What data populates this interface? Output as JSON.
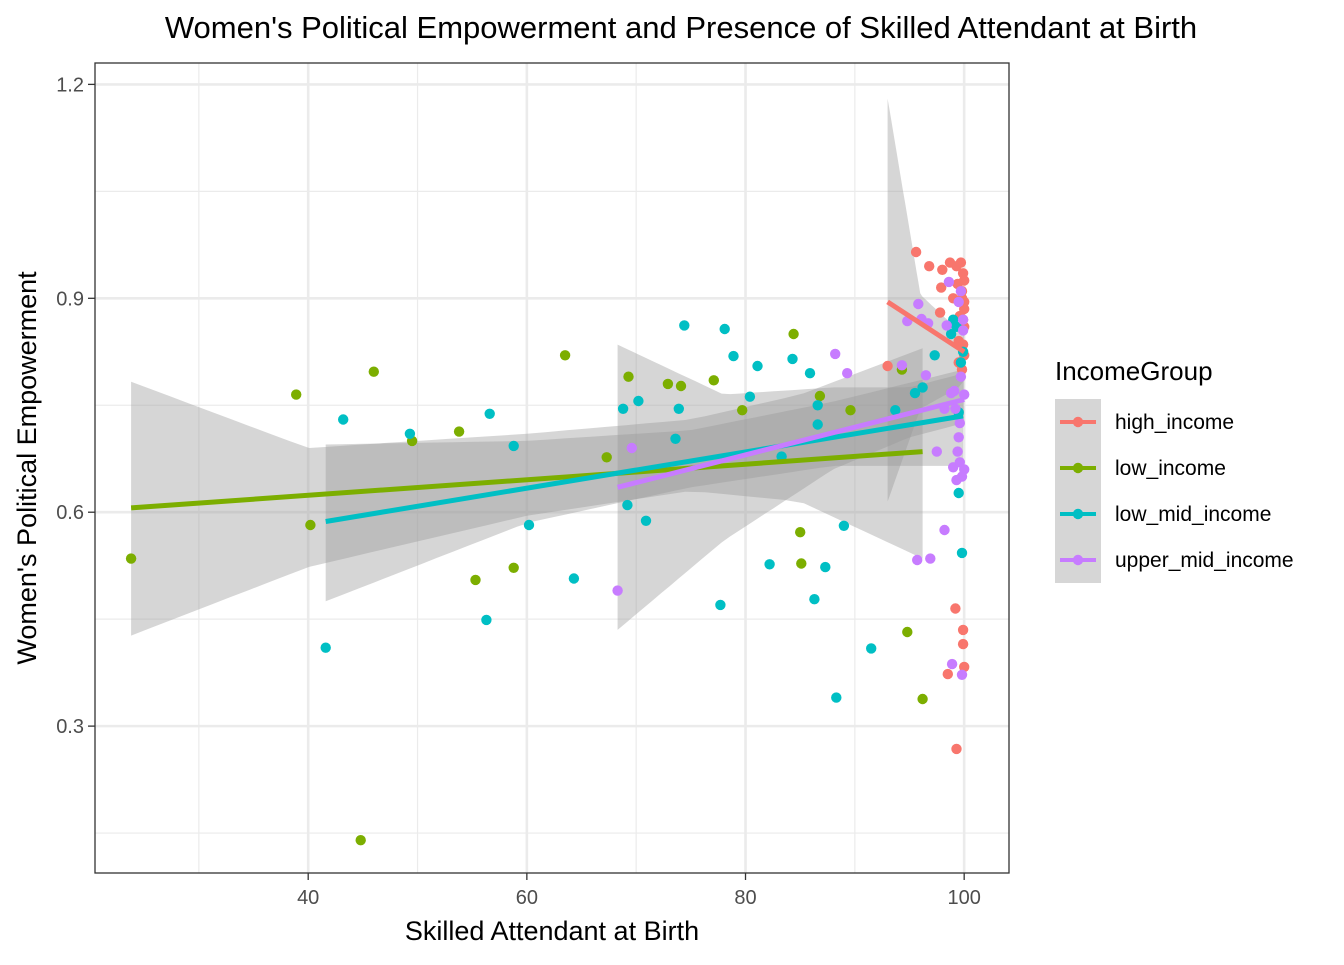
{
  "chart_data": {
    "type": "scatter",
    "title": "Women's Political Empowerment and Presence of Skilled Attendant at Birth",
    "xlabel": "Skilled Attendant at Birth",
    "ylabel": "Women's Political Empowerment",
    "xlim": [
      20.5,
      104.1
    ],
    "ylim": [
      0.094,
      1.23
    ],
    "x_ticks": [
      40,
      60,
      80,
      100
    ],
    "y_ticks": [
      0.3,
      0.6,
      0.9,
      1.2
    ],
    "x_minor": [
      30,
      50,
      70,
      90
    ],
    "y_minor": [
      0.15,
      0.45,
      0.75,
      1.05
    ],
    "grid": true,
    "legend": {
      "title": "IncomeGroup",
      "position": "right"
    },
    "colors": {
      "high_income": "#F8766D",
      "low_income": "#7CAE00",
      "low_mid_income": "#00BFC4",
      "upper_mid_income": "#C77CFF",
      "ribbon": "#999999"
    },
    "series": [
      {
        "name": "high_income",
        "color": "#F8766D",
        "points": [
          [
            93,
            0.805
          ],
          [
            95.6,
            0.965
          ],
          [
            96.8,
            0.945
          ],
          [
            98,
            0.94
          ],
          [
            98.7,
            0.95
          ],
          [
            99.3,
            0.945
          ],
          [
            99.7,
            0.95
          ],
          [
            99.9,
            0.935
          ],
          [
            100,
            0.925
          ],
          [
            99.4,
            0.92
          ],
          [
            99.8,
            0.91
          ],
          [
            97.9,
            0.915
          ],
          [
            99,
            0.9
          ],
          [
            99.8,
            0.9
          ],
          [
            100,
            0.895
          ],
          [
            100,
            0.885
          ],
          [
            97.8,
            0.88
          ],
          [
            99.6,
            0.875
          ],
          [
            99.9,
            0.87
          ],
          [
            100,
            0.86
          ],
          [
            99.5,
            0.84
          ],
          [
            99.9,
            0.835
          ],
          [
            100,
            0.82
          ],
          [
            99.5,
            0.81
          ],
          [
            99.8,
            0.8
          ],
          [
            99.2,
            0.465
          ],
          [
            99.9,
            0.435
          ],
          [
            99.9,
            0.415
          ],
          [
            100,
            0.383
          ],
          [
            98.5,
            0.373
          ],
          [
            99.3,
            0.268
          ]
        ],
        "fit": {
          "x": [
            93,
            100
          ],
          "y": [
            0.895,
            0.825
          ]
        },
        "ribbon": {
          "x": [
            93,
            96,
            99.5,
            100
          ],
          "lower": [
            0.615,
            0.745,
            0.775,
            0.785
          ],
          "upper": [
            1.18,
            0.905,
            0.855,
            0.865
          ]
        }
      },
      {
        "name": "low_income",
        "color": "#7CAE00",
        "points": [
          [
            23.8,
            0.535
          ],
          [
            38.9,
            0.765
          ],
          [
            40.2,
            0.582
          ],
          [
            44.8,
            0.14
          ],
          [
            46,
            0.797
          ],
          [
            49.5,
            0.7
          ],
          [
            53.8,
            0.713
          ],
          [
            55.3,
            0.505
          ],
          [
            58.8,
            0.522
          ],
          [
            63.5,
            0.82
          ],
          [
            67.3,
            0.677
          ],
          [
            69.3,
            0.79
          ],
          [
            72.9,
            0.78
          ],
          [
            74.1,
            0.777
          ],
          [
            77.1,
            0.785
          ],
          [
            79.7,
            0.743
          ],
          [
            84.4,
            0.85
          ],
          [
            85,
            0.572
          ],
          [
            85.1,
            0.528
          ],
          [
            86.8,
            0.763
          ],
          [
            89.6,
            0.743
          ],
          [
            94.3,
            0.8
          ],
          [
            94.8,
            0.432
          ],
          [
            96.2,
            0.338
          ]
        ],
        "fit": {
          "x": [
            23.8,
            96.2
          ],
          "y": [
            0.606,
            0.685
          ]
        },
        "ribbon": {
          "x": [
            23.8,
            40,
            60,
            75,
            85,
            96.2
          ],
          "lower": [
            0.427,
            0.523,
            0.595,
            0.63,
            0.615,
            0.535
          ],
          "upper": [
            0.783,
            0.69,
            0.71,
            0.73,
            0.765,
            0.83
          ]
        }
      },
      {
        "name": "low_mid_income",
        "color": "#00BFC4",
        "points": [
          [
            41.6,
            0.41
          ],
          [
            43.2,
            0.73
          ],
          [
            49.3,
            0.71
          ],
          [
            56.3,
            0.449
          ],
          [
            56.6,
            0.738
          ],
          [
            58.8,
            0.693
          ],
          [
            60.2,
            0.582
          ],
          [
            64.3,
            0.507
          ],
          [
            68.8,
            0.745
          ],
          [
            69.2,
            0.61
          ],
          [
            70.2,
            0.756
          ],
          [
            70.9,
            0.588
          ],
          [
            73.6,
            0.703
          ],
          [
            73.9,
            0.745
          ],
          [
            74.4,
            0.862
          ],
          [
            77.7,
            0.47
          ],
          [
            78.1,
            0.857
          ],
          [
            78.9,
            0.819
          ],
          [
            80.4,
            0.762
          ],
          [
            81.1,
            0.805
          ],
          [
            82.2,
            0.527
          ],
          [
            83.3,
            0.678
          ],
          [
            84.3,
            0.815
          ],
          [
            85.9,
            0.795
          ],
          [
            86.3,
            0.478
          ],
          [
            86.6,
            0.75
          ],
          [
            86.6,
            0.723
          ],
          [
            87.3,
            0.523
          ],
          [
            88.3,
            0.34
          ],
          [
            89,
            0.581
          ],
          [
            91.5,
            0.409
          ],
          [
            93.7,
            0.743
          ],
          [
            95.5,
            0.767
          ],
          [
            96.2,
            0.775
          ],
          [
            97.3,
            0.82
          ],
          [
            98.8,
            0.85
          ],
          [
            99,
            0.87
          ],
          [
            99.3,
            0.86
          ],
          [
            99.5,
            0.74
          ],
          [
            99.5,
            0.627
          ],
          [
            99.7,
            0.81
          ],
          [
            99.8,
            0.543
          ],
          [
            99.9,
            0.825
          ]
        ],
        "fit": {
          "x": [
            41.6,
            99.9
          ],
          "y": [
            0.587,
            0.735
          ]
        },
        "ribbon": {
          "x": [
            41.6,
            60,
            75,
            88,
            99.9
          ],
          "lower": [
            0.475,
            0.585,
            0.635,
            0.665,
            0.665
          ],
          "upper": [
            0.695,
            0.7,
            0.715,
            0.755,
            0.8
          ]
        }
      },
      {
        "name": "upper_mid_income",
        "color": "#C77CFF",
        "points": [
          [
            68.3,
            0.49
          ],
          [
            69.6,
            0.69
          ],
          [
            88.2,
            0.822
          ],
          [
            89.3,
            0.795
          ],
          [
            94.3,
            0.806
          ],
          [
            94.8,
            0.868
          ],
          [
            95.7,
            0.533
          ],
          [
            95.8,
            0.892
          ],
          [
            96.1,
            0.871
          ],
          [
            96.7,
            0.865
          ],
          [
            96.9,
            0.535
          ],
          [
            97.5,
            0.685
          ],
          [
            98.2,
            0.575
          ],
          [
            98.4,
            0.862
          ],
          [
            98.6,
            0.923
          ],
          [
            98.8,
            0.767
          ],
          [
            98.9,
            0.387
          ],
          [
            99,
            0.663
          ],
          [
            99.1,
            0.77
          ],
          [
            99.2,
            0.745
          ],
          [
            99.3,
            0.645
          ],
          [
            99.4,
            0.685
          ],
          [
            99.5,
            0.895
          ],
          [
            99.5,
            0.705
          ],
          [
            99.6,
            0.725
          ],
          [
            99.6,
            0.67
          ],
          [
            99.7,
            0.91
          ],
          [
            99.7,
            0.79
          ],
          [
            99.8,
            0.65
          ],
          [
            99.8,
            0.372
          ],
          [
            99.9,
            0.87
          ],
          [
            99.9,
            0.855
          ],
          [
            100,
            0.765
          ],
          [
            100,
            0.66
          ],
          [
            96.5,
            0.792
          ],
          [
            98.2,
            0.745
          ]
        ],
        "fit": {
          "x": [
            68.3,
            100
          ],
          "y": [
            0.635,
            0.758
          ]
        },
        "ribbon": {
          "x": [
            68.3,
            78,
            88,
            95,
            100
          ],
          "lower": [
            0.435,
            0.56,
            0.66,
            0.705,
            0.725
          ],
          "upper": [
            0.835,
            0.765,
            0.775,
            0.775,
            0.795
          ]
        }
      }
    ]
  }
}
